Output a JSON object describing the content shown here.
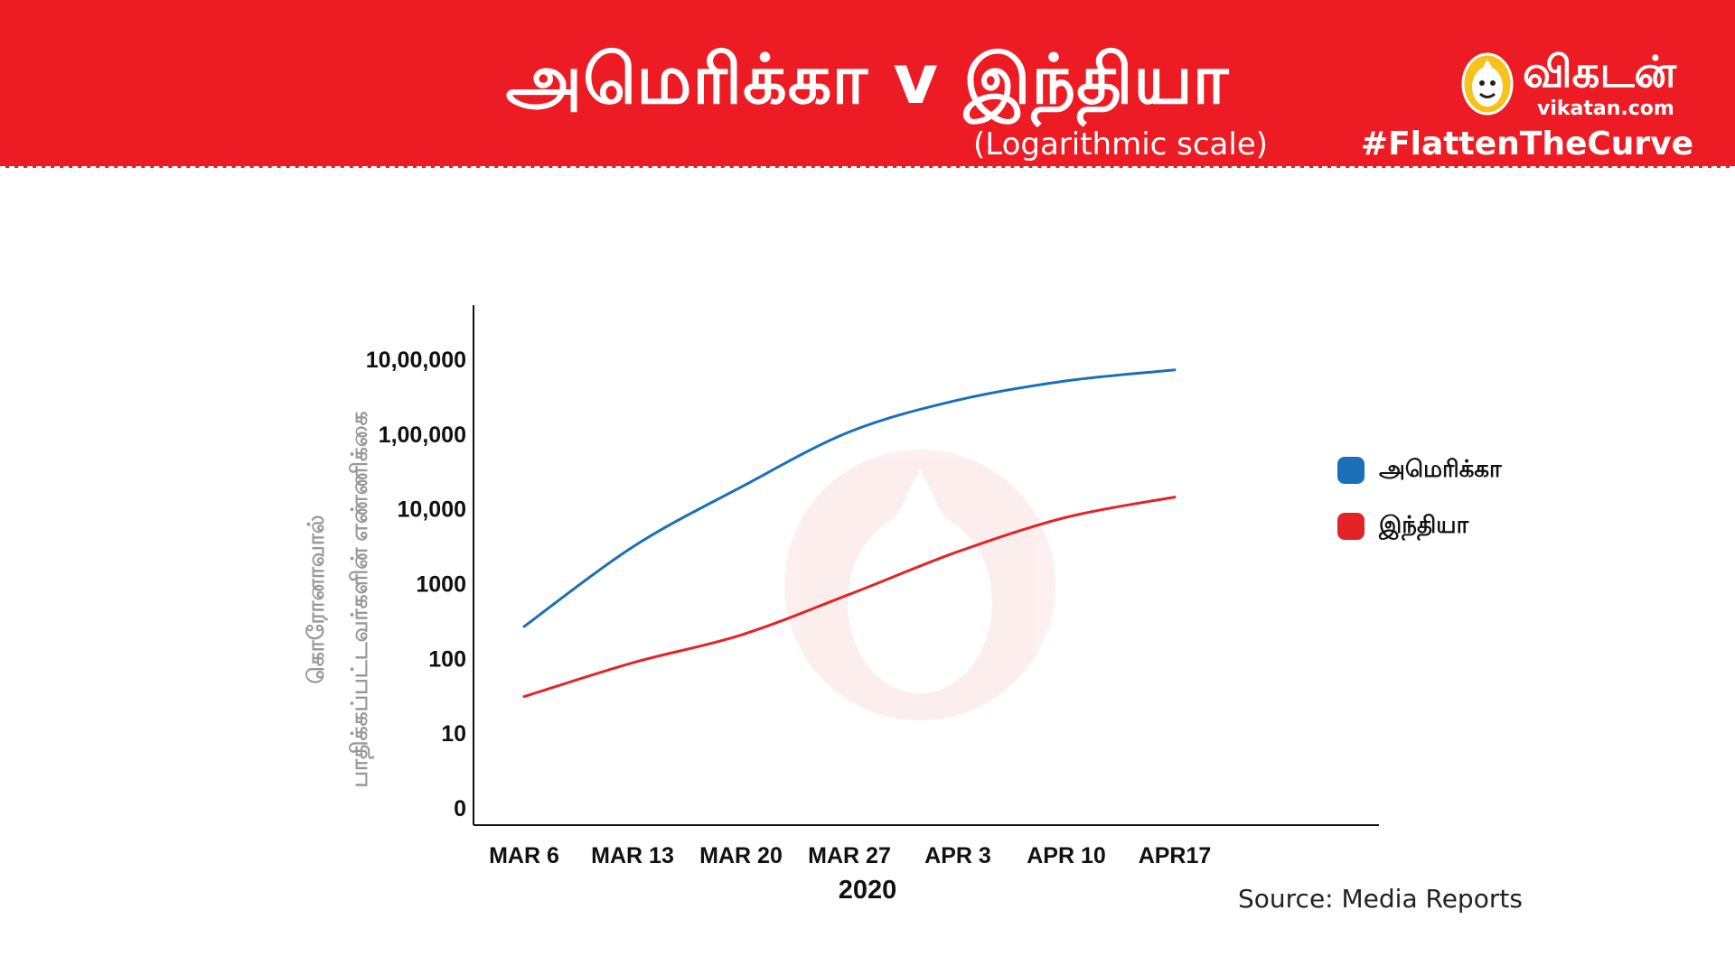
{
  "header": {
    "title": "அமெரிக்கா v இந்தியா",
    "subtitle": "(Logarithmic scale)",
    "brand_name": "விகடன்",
    "brand_url": "vikatan.com",
    "hashtag": "#FlattenTheCurve",
    "background_color": "#ed1c24"
  },
  "chart_data": {
    "type": "line",
    "title": "அமெரிக்கா v இந்தியா",
    "subtitle": "(Logarithmic scale)",
    "x": [
      "MAR 6",
      "MAR 13",
      "MAR 20",
      "MAR 27",
      "APR 3",
      "APR 10",
      "APR17"
    ],
    "xlabel": "2020",
    "ylabel_lines": [
      "கொரோனாவால்",
      "பாதிக்கப்பட்டவர்களின் எண்ணிக்கை"
    ],
    "y_scale": "log",
    "y_ticks": [
      {
        "value": 1,
        "label": "0"
      },
      {
        "value": 10,
        "label": "10"
      },
      {
        "value": 100,
        "label": "100"
      },
      {
        "value": 1000,
        "label": "1000"
      },
      {
        "value": 10000,
        "label": "10,000"
      },
      {
        "value": 100000,
        "label": "1,00,000"
      },
      {
        "value": 1000000,
        "label": "10,00,000"
      }
    ],
    "ylim": [
      1,
      1000000
    ],
    "grid": false,
    "legend_position": "right",
    "series": [
      {
        "name": "அமெரிக்கா",
        "color": "#1a70b8",
        "values": [
          260,
          3000,
          19000,
          104000,
          277000,
          500000,
          700000
        ]
      },
      {
        "name": "இந்தியா",
        "color": "#e42328",
        "values": [
          30,
          85,
          200,
          700,
          2600,
          7500,
          14000
        ]
      }
    ]
  },
  "footer": {
    "source": "Source: Media Reports"
  }
}
